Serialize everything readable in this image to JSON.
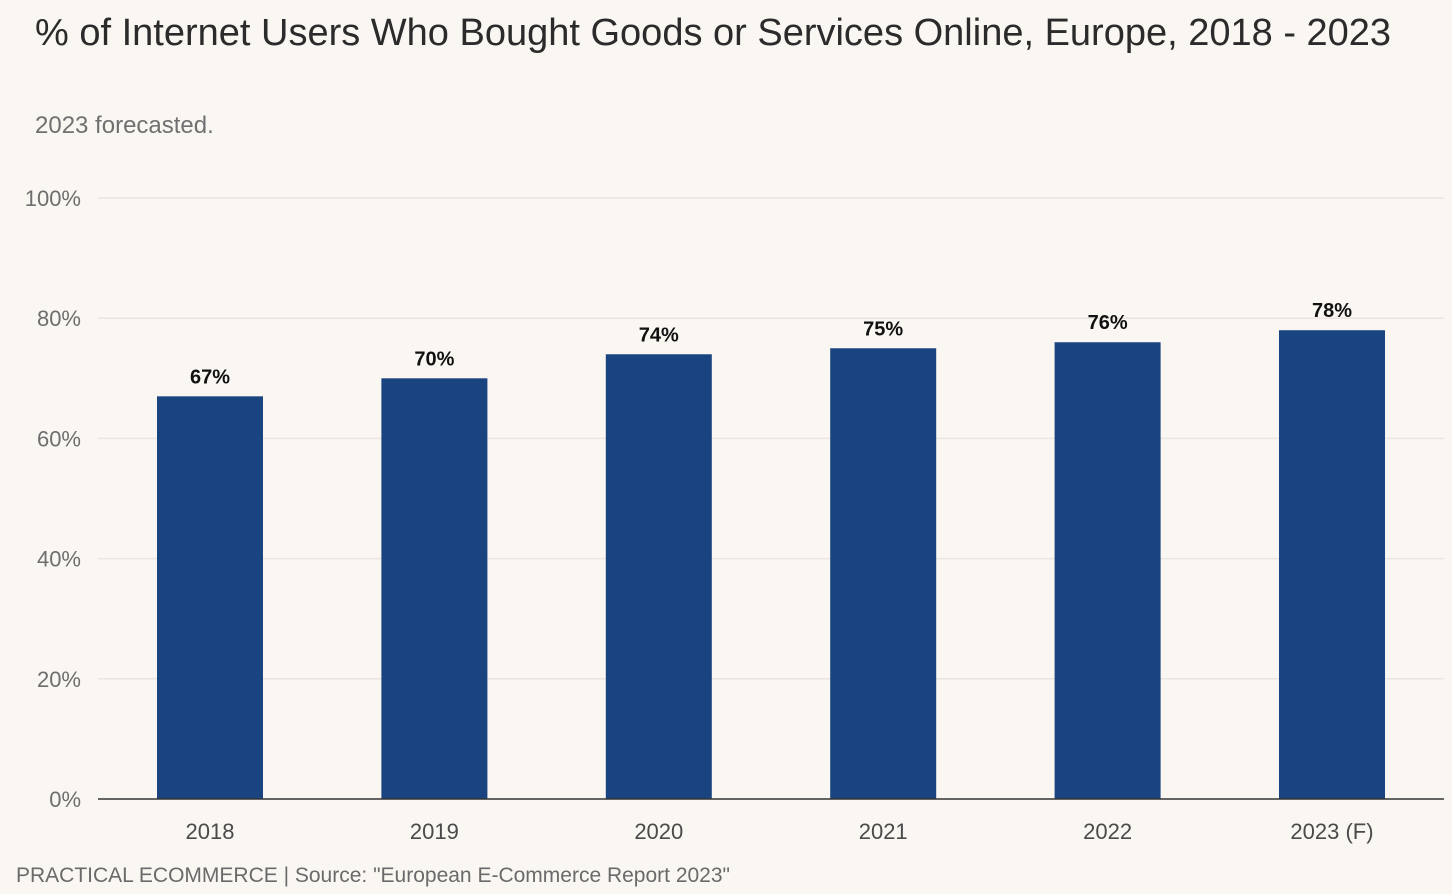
{
  "header": {
    "title": "% of Internet Users Who Bought Goods or Services Online, Europe, 2018 - 2023",
    "subtitle": "2023 forecasted."
  },
  "footer": {
    "source": "PRACTICAL ECOMMERCE | Source: \"European E-Commerce Report 2023\""
  },
  "colors": {
    "bar": "#1a4480",
    "grid": "#ece4e0",
    "axis": "#333333",
    "background": "#faf6f2"
  },
  "chart_data": {
    "type": "bar",
    "title": "% of Internet Users Who Bought Goods or Services Online, Europe, 2018 - 2023",
    "subtitle": "2023 forecasted.",
    "xlabel": "",
    "ylabel": "",
    "categories": [
      "2018",
      "2019",
      "2020",
      "2021",
      "2022",
      "2023 (F)"
    ],
    "values": [
      67,
      70,
      74,
      75,
      76,
      78
    ],
    "value_labels": [
      "67%",
      "70%",
      "74%",
      "75%",
      "76%",
      "78%"
    ],
    "ylim": [
      0,
      100
    ],
    "yticks": [
      0,
      20,
      40,
      60,
      80,
      100
    ],
    "ytick_labels": [
      "0%",
      "20%",
      "40%",
      "60%",
      "80%",
      "100%"
    ],
    "grid": true,
    "legend": "none"
  }
}
